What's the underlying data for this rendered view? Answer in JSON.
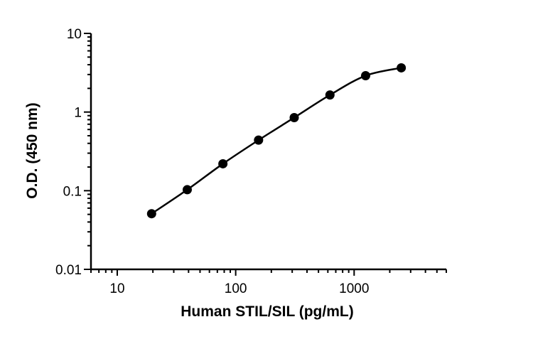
{
  "chart_data": {
    "type": "scatter",
    "title": "",
    "xlabel": "Human STIL/SIL (pg/mL)",
    "ylabel": "O.D. (450 nm)",
    "x_scale": "log",
    "y_scale": "log",
    "xlim": [
      6,
      6000
    ],
    "ylim": [
      0.01,
      10
    ],
    "x_ticks": [
      10,
      100,
      1000
    ],
    "x_tick_labels": [
      "10",
      "100",
      "1000"
    ],
    "y_ticks": [
      0.01,
      0.1,
      1,
      10
    ],
    "y_tick_labels": [
      "0.01",
      "0.1",
      "1",
      "10"
    ],
    "grid": false,
    "legend": "none",
    "series": [
      {
        "x": [
          19.5,
          39,
          78,
          156,
          312,
          625,
          1250,
          2500
        ],
        "y": [
          0.051,
          0.103,
          0.22,
          0.44,
          0.85,
          1.65,
          2.9,
          3.65
        ],
        "color": "#000000",
        "marker": "circle",
        "fit_curve": true
      }
    ]
  }
}
